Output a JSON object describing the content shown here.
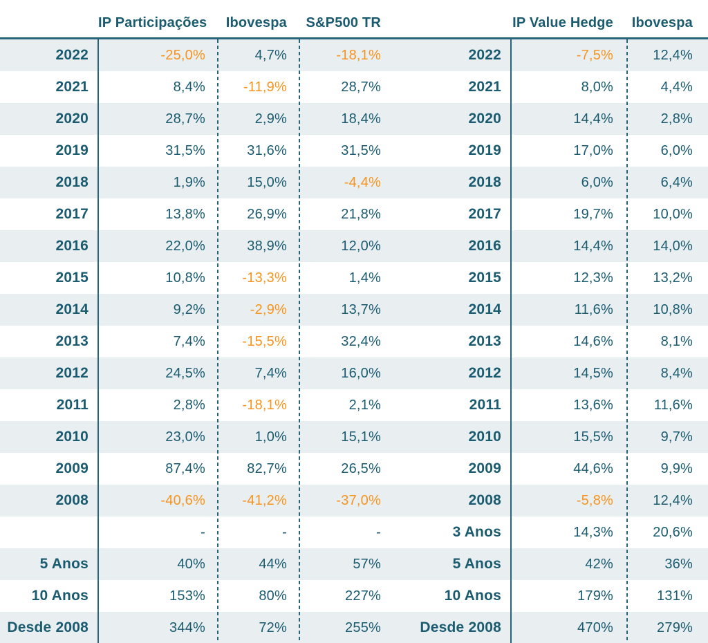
{
  "colors": {
    "text_teal": "#1A5B70",
    "negative_orange": "#F6941E",
    "row_stripe": "#E9EEF1",
    "line_teal": "#266478"
  },
  "chart_data": {
    "type": "table",
    "title": "",
    "layout": "two side-by-side return tables sharing one grid; negative values shown in orange; dash means not applicable",
    "columns": [
      "",
      "IP Participações",
      "Ibovespa",
      "S&P500 TR",
      "",
      "IP Value Hedge",
      "Ibovespa"
    ],
    "rows": [
      [
        "2022",
        "-25,0%",
        "4,7%",
        "-18,1%",
        "2022",
        "-7,5%",
        "12,4%"
      ],
      [
        "2021",
        "8,4%",
        "-11,9%",
        "28,7%",
        "2021",
        "8,0%",
        "4,4%"
      ],
      [
        "2020",
        "28,7%",
        "2,9%",
        "18,4%",
        "2020",
        "14,4%",
        "2,8%"
      ],
      [
        "2019",
        "31,5%",
        "31,6%",
        "31,5%",
        "2019",
        "17,0%",
        "6,0%"
      ],
      [
        "2018",
        "1,9%",
        "15,0%",
        "-4,4%",
        "2018",
        "6,0%",
        "6,4%"
      ],
      [
        "2017",
        "13,8%",
        "26,9%",
        "21,8%",
        "2017",
        "19,7%",
        "10,0%"
      ],
      [
        "2016",
        "22,0%",
        "38,9%",
        "12,0%",
        "2016",
        "14,4%",
        "14,0%"
      ],
      [
        "2015",
        "10,8%",
        "-13,3%",
        "1,4%",
        "2015",
        "12,3%",
        "13,2%"
      ],
      [
        "2014",
        "9,2%",
        "-2,9%",
        "13,7%",
        "2014",
        "11,6%",
        "10,8%"
      ],
      [
        "2013",
        "7,4%",
        "-15,5%",
        "32,4%",
        "2013",
        "14,6%",
        "8,1%"
      ],
      [
        "2012",
        "24,5%",
        "7,4%",
        "16,0%",
        "2012",
        "14,5%",
        "8,4%"
      ],
      [
        "2011",
        "2,8%",
        "-18,1%",
        "2,1%",
        "2011",
        "13,6%",
        "11,6%"
      ],
      [
        "2010",
        "23,0%",
        "1,0%",
        "15,1%",
        "2010",
        "15,5%",
        "9,7%"
      ],
      [
        "2009",
        "87,4%",
        "82,7%",
        "26,5%",
        "2009",
        "44,6%",
        "9,9%"
      ],
      [
        "2008",
        "-40,6%",
        "-41,2%",
        "-37,0%",
        "2008",
        "-5,8%",
        "12,4%"
      ],
      [
        "",
        "-",
        "-",
        "-",
        "3 Anos",
        "14,3%",
        "20,6%"
      ],
      [
        "5 Anos",
        "40%",
        "44%",
        "57%",
        "5 Anos",
        "42%",
        "36%"
      ],
      [
        "10 Anos",
        "153%",
        "80%",
        "227%",
        "10 Anos",
        "179%",
        "131%"
      ],
      [
        "Desde 2008",
        "344%",
        "72%",
        "255%",
        "Desde 2008",
        "470%",
        "279%"
      ]
    ]
  }
}
